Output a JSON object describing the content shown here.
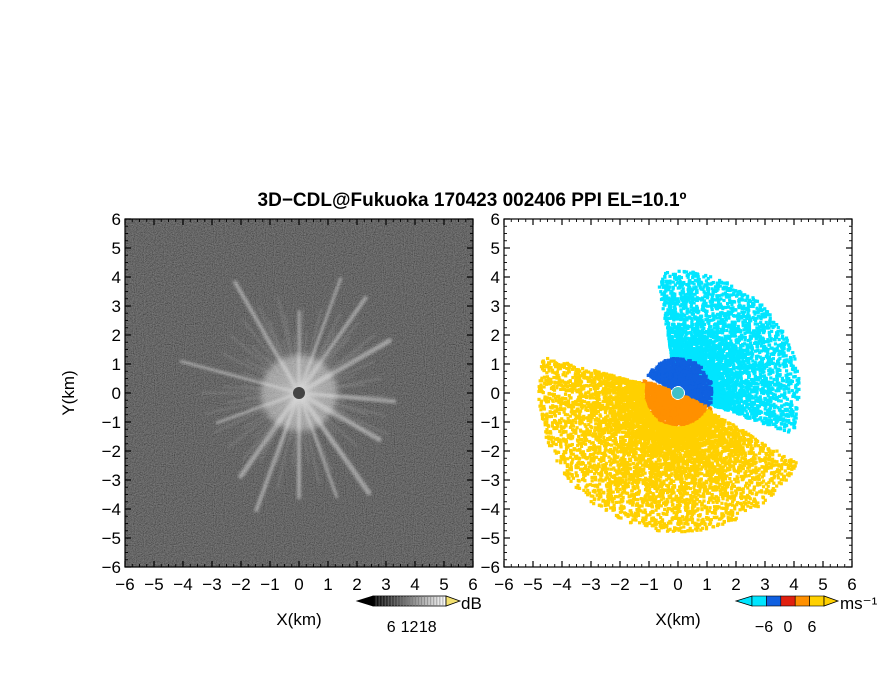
{
  "title": "3D−CDL@Fukuoka 170423 002406 PPI EL=10.1º",
  "chart_data": [
    {
      "type": "heatmap",
      "panel": "left",
      "quantity": "reflectivity / SNR",
      "xlabel": "X(km)",
      "ylabel": "Y(km)",
      "xlim": [
        -6,
        6
      ],
      "ylim": [
        -6,
        6
      ],
      "xticks": [
        "−6",
        "−5",
        "−4",
        "−3",
        "−2",
        "−1",
        "0",
        "1",
        "2",
        "3",
        "4",
        "5",
        "6"
      ],
      "yticks": [
        "6",
        "5",
        "4",
        "3",
        "2",
        "1",
        "0",
        "−1",
        "−2",
        "−3",
        "−4",
        "−5",
        "−6"
      ],
      "colormap": "grayscale",
      "background_color": "#2b2b2b",
      "colorbar": {
        "unit": "dB",
        "ticks": [
          "6",
          "12",
          "18"
        ],
        "range": [
          0,
          24
        ]
      },
      "rays": [
        {
          "azimuth_deg": 285,
          "length_km": 4.2
        },
        {
          "azimuth_deg": 35,
          "length_km": 4.0
        },
        {
          "azimuth_deg": 60,
          "length_km": 3.6
        },
        {
          "azimuth_deg": 20,
          "length_km": 4.2
        },
        {
          "azimuth_deg": 330,
          "length_km": 4.4
        },
        {
          "azimuth_deg": 145,
          "length_km": 4.2
        },
        {
          "azimuth_deg": 160,
          "length_km": 3.8
        },
        {
          "azimuth_deg": 200,
          "length_km": 4.3
        },
        {
          "azimuth_deg": 215,
          "length_km": 3.5
        },
        {
          "azimuth_deg": 250,
          "length_km": 3.0
        },
        {
          "azimuth_deg": 95,
          "length_km": 3.3
        },
        {
          "azimuth_deg": 120,
          "length_km": 3.2
        },
        {
          "azimuth_deg": 0,
          "length_km": 2.8
        },
        {
          "azimuth_deg": 180,
          "length_km": 3.6
        }
      ]
    },
    {
      "type": "heatmap",
      "panel": "right",
      "quantity": "Doppler velocity",
      "xlabel": "X(km)",
      "ylabel": "",
      "xlim": [
        -6,
        6
      ],
      "ylim": [
        -6,
        6
      ],
      "xticks": [
        "−6",
        "−5",
        "−4",
        "−3",
        "−2",
        "−1",
        "0",
        "1",
        "2",
        "3",
        "4",
        "5",
        "6"
      ],
      "yticks": [
        "6",
        "5",
        "4",
        "3",
        "2",
        "1",
        "0",
        "−1",
        "−2",
        "−3",
        "−4",
        "−5",
        "−6"
      ],
      "colormap": [
        "#00e5ff",
        "#1060e0",
        "#e02010",
        "#ff9000",
        "#ffd000"
      ],
      "colorbar": {
        "unit": "ms⁻¹",
        "ticks": [
          "−6",
          "0",
          "6"
        ],
        "range": [
          -9,
          9
        ]
      },
      "regions": [
        {
          "name": "negative-far",
          "value": -8,
          "azimuth_range": [
            -10,
            110
          ],
          "range_km": [
            1.0,
            4.2
          ]
        },
        {
          "name": "negative-near",
          "value": -4,
          "azimuth_range": [
            -60,
            115
          ],
          "range_km": [
            0.3,
            1.2
          ]
        },
        {
          "name": "positive-near",
          "value": 3,
          "azimuth_range": [
            115,
            290
          ],
          "range_km": [
            0.3,
            1.3
          ]
        },
        {
          "name": "positive-far",
          "value": 6,
          "azimuth_range": [
            120,
            285
          ],
          "range_km": [
            1.2,
            4.8
          ]
        }
      ]
    }
  ]
}
